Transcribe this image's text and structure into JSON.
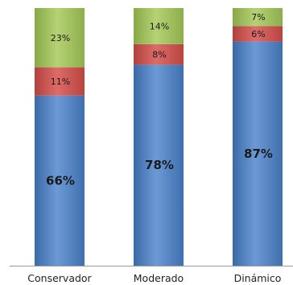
{
  "chart_data": {
    "type": "bar",
    "stacked": true,
    "categories": [
      "Conservador",
      "Moderado",
      "Dinámico"
    ],
    "series": [
      {
        "values": [
          66,
          78,
          87
        ],
        "labels": [
          "66%",
          "78%",
          "87%"
        ],
        "color": "#4f81bd"
      },
      {
        "values": [
          11,
          8,
          6
        ],
        "labels": [
          "11%",
          "8%",
          "6%"
        ],
        "color": "#c0504d"
      },
      {
        "values": [
          23,
          14,
          7
        ],
        "labels": [
          "23%",
          "14%",
          "7%"
        ],
        "color": "#9bbb59"
      }
    ],
    "title": "",
    "xlabel": "",
    "ylabel": "",
    "ylim": [
      0,
      100
    ],
    "grid": false,
    "legend": "none"
  }
}
